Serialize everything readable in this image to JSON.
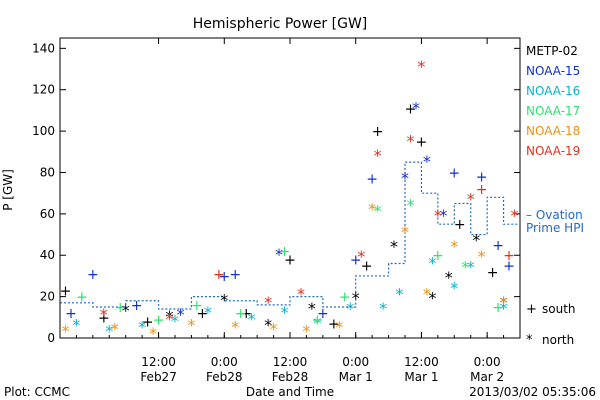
{
  "chart_data": {
    "type": "scatter",
    "title": "Hemispheric Power [GW]",
    "ylabel": "P [GW]",
    "xlabel": "Date and Time",
    "ylim": [
      0,
      145
    ],
    "yticks": [
      "0",
      "20",
      "40",
      "60",
      "80",
      "100",
      "120",
      "140"
    ],
    "xlim": [
      "2013-02-26 18:00",
      "2013-03-02 06:00"
    ],
    "xticks": [
      {
        "time": "2013-02-27 12:00",
        "top": "12:00",
        "bottom": "Feb27"
      },
      {
        "time": "2013-02-28 00:00",
        "top": "0:00",
        "bottom": "Feb28"
      },
      {
        "time": "2013-02-28 12:00",
        "top": "12:00",
        "bottom": "Feb28"
      },
      {
        "time": "2013-03-01 00:00",
        "top": "0:00",
        "bottom": "Mar 1"
      },
      {
        "time": "2013-03-01 12:00",
        "top": "12:00",
        "bottom": "Mar 1"
      },
      {
        "time": "2013-03-02 00:00",
        "top": "0:00",
        "bottom": "Mar 2"
      }
    ],
    "legend_position": "right",
    "series": [
      {
        "name": "METP-02",
        "color": "#000000",
        "points": [
          [
            "2013-02-26 19:00",
            23,
            "s"
          ],
          [
            "2013-02-27 02:00",
            10,
            "s"
          ],
          [
            "2013-02-27 06:00",
            14,
            "n"
          ],
          [
            "2013-02-27 10:00",
            8,
            "s"
          ],
          [
            "2013-02-27 14:00",
            11,
            "n"
          ],
          [
            "2013-02-27 20:00",
            12,
            "s"
          ],
          [
            "2013-02-28 00:00",
            19,
            "n"
          ],
          [
            "2013-02-28 04:00",
            12,
            "s"
          ],
          [
            "2013-02-28 08:00",
            7,
            "n"
          ],
          [
            "2013-02-28 12:00",
            38,
            "s"
          ],
          [
            "2013-02-28 16:00",
            15,
            "n"
          ],
          [
            "2013-02-28 20:00",
            7,
            "s"
          ],
          [
            "2013-03-01 00:00",
            20,
            "n"
          ],
          [
            "2013-03-01 02:00",
            35,
            "s"
          ],
          [
            "2013-03-01 04:00",
            100,
            "s"
          ],
          [
            "2013-03-01 07:00",
            45,
            "n"
          ],
          [
            "2013-03-01 10:00",
            111,
            "s"
          ],
          [
            "2013-03-01 12:00",
            95,
            "s"
          ],
          [
            "2013-03-01 14:00",
            20,
            "n"
          ],
          [
            "2013-03-01 17:00",
            30,
            "n"
          ],
          [
            "2013-03-01 19:00",
            55,
            "s"
          ],
          [
            "2013-03-01 22:00",
            48,
            "n"
          ],
          [
            "2013-03-02 01:00",
            32,
            "s"
          ],
          [
            "2013-03-02 03:00",
            18,
            "n"
          ]
        ]
      },
      {
        "name": "NOAA-15",
        "color": "#1030c8",
        "points": [
          [
            "2013-02-26 20:00",
            12,
            "s"
          ],
          [
            "2013-02-27 00:00",
            31,
            "s"
          ],
          [
            "2013-02-27 08:00",
            16,
            "s"
          ],
          [
            "2013-02-27 16:00",
            12,
            "n"
          ],
          [
            "2013-02-28 00:00",
            30,
            "s"
          ],
          [
            "2013-02-28 02:00",
            31,
            "s"
          ],
          [
            "2013-02-28 10:00",
            41,
            "n"
          ],
          [
            "2013-02-28 18:00",
            12,
            "s"
          ],
          [
            "2013-03-01 00:00",
            38,
            "s"
          ],
          [
            "2013-03-01 03:00",
            77,
            "s"
          ],
          [
            "2013-03-01 09:00",
            78,
            "n"
          ],
          [
            "2013-03-01 11:00",
            112,
            "n"
          ],
          [
            "2013-03-01 13:00",
            86,
            "n"
          ],
          [
            "2013-03-01 16:00",
            60,
            "n"
          ],
          [
            "2013-03-01 18:00",
            80,
            "s"
          ],
          [
            "2013-03-01 23:00",
            78,
            "s"
          ],
          [
            "2013-03-02 02:00",
            45,
            "s"
          ],
          [
            "2013-03-02 04:00",
            35,
            "s"
          ]
        ]
      },
      {
        "name": "NOAA-16",
        "color": "#00b4d2",
        "points": [
          [
            "2013-02-26 21:00",
            7,
            "n"
          ],
          [
            "2013-02-27 03:00",
            4,
            "n"
          ],
          [
            "2013-02-27 09:00",
            6,
            "n"
          ],
          [
            "2013-02-27 15:00",
            9,
            "n"
          ],
          [
            "2013-02-27 21:00",
            13,
            "n"
          ],
          [
            "2013-02-28 05:00",
            10,
            "n"
          ],
          [
            "2013-02-28 11:00",
            13,
            "n"
          ],
          [
            "2013-02-28 17:00",
            8,
            "n"
          ],
          [
            "2013-02-28 23:00",
            15,
            "n"
          ],
          [
            "2013-03-01 05:00",
            15,
            "n"
          ],
          [
            "2013-03-01 08:00",
            22,
            "n"
          ],
          [
            "2013-03-01 14:00",
            37,
            "n"
          ],
          [
            "2013-03-01 18:00",
            25,
            "n"
          ],
          [
            "2013-03-01 21:00",
            35,
            "n"
          ],
          [
            "2013-03-02 03:00",
            15,
            "n"
          ]
        ]
      },
      {
        "name": "NOAA-17",
        "color": "#30e070",
        "points": [
          [
            "2013-02-26 22:00",
            20,
            "s"
          ],
          [
            "2013-02-27 05:00",
            15,
            "s"
          ],
          [
            "2013-02-27 12:00",
            9,
            "s"
          ],
          [
            "2013-02-27 19:00",
            16,
            "s"
          ],
          [
            "2013-02-28 03:00",
            12,
            "s"
          ],
          [
            "2013-02-28 11:00",
            42,
            "s"
          ],
          [
            "2013-02-28 17:00",
            9,
            "s"
          ],
          [
            "2013-02-28 22:00",
            20,
            "s"
          ],
          [
            "2013-03-01 04:00",
            62,
            "n"
          ],
          [
            "2013-03-01 10:00",
            65,
            "n"
          ],
          [
            "2013-03-01 15:00",
            40,
            "s"
          ],
          [
            "2013-03-01 20:00",
            35,
            "n"
          ],
          [
            "2013-03-02 02:00",
            15,
            "s"
          ]
        ]
      },
      {
        "name": "NOAA-18",
        "color": "#f09010",
        "points": [
          [
            "2013-02-26 19:00",
            4,
            "n"
          ],
          [
            "2013-02-27 04:00",
            5,
            "n"
          ],
          [
            "2013-02-27 11:00",
            3,
            "n"
          ],
          [
            "2013-02-27 18:00",
            7,
            "n"
          ],
          [
            "2013-02-28 02:00",
            6,
            "n"
          ],
          [
            "2013-02-28 09:00",
            5,
            "n"
          ],
          [
            "2013-02-28 15:00",
            4,
            "n"
          ],
          [
            "2013-02-28 21:00",
            6,
            "n"
          ],
          [
            "2013-03-01 03:00",
            63,
            "n"
          ],
          [
            "2013-03-01 09:00",
            52,
            "n"
          ],
          [
            "2013-03-01 13:00",
            22,
            "n"
          ],
          [
            "2013-03-01 18:00",
            45,
            "n"
          ],
          [
            "2013-03-01 23:00",
            40,
            "n"
          ],
          [
            "2013-03-02 03:00",
            18,
            "n"
          ]
        ]
      },
      {
        "name": "NOAA-19",
        "color": "#e03020",
        "points": [
          [
            "2013-02-27 02:00",
            12,
            "n"
          ],
          [
            "2013-02-27 14:00",
            10,
            "n"
          ],
          [
            "2013-02-27 23:00",
            31,
            "s"
          ],
          [
            "2013-02-28 08:00",
            18,
            "n"
          ],
          [
            "2013-02-28 14:00",
            22,
            "n"
          ],
          [
            "2013-03-01 01:00",
            40,
            "n"
          ],
          [
            "2013-03-01 04:00",
            89,
            "n"
          ],
          [
            "2013-03-01 10:00",
            96,
            "n"
          ],
          [
            "2013-03-01 12:00",
            132,
            "n"
          ],
          [
            "2013-03-01 15:00",
            60,
            "n"
          ],
          [
            "2013-03-01 21:00",
            68,
            "n"
          ],
          [
            "2013-03-01 23:00",
            72,
            "s"
          ],
          [
            "2013-03-02 04:00",
            40,
            "s"
          ],
          [
            "2013-03-02 05:00",
            60,
            "n"
          ]
        ]
      }
    ],
    "ovation": {
      "label_line1": "Ovation",
      "label_line2": "Prime HPI",
      "dash_prefix": "– ",
      "color": "#1f6bc8",
      "values": [
        [
          "2013-02-26 18:00",
          17
        ],
        [
          "2013-02-27 00:00",
          15
        ],
        [
          "2013-02-27 06:00",
          18
        ],
        [
          "2013-02-27 12:00",
          14
        ],
        [
          "2013-02-27 18:00",
          20
        ],
        [
          "2013-02-28 00:00",
          18
        ],
        [
          "2013-02-28 06:00",
          16
        ],
        [
          "2013-02-28 12:00",
          20
        ],
        [
          "2013-02-28 18:00",
          15
        ],
        [
          "2013-03-01 00:00",
          30
        ],
        [
          "2013-03-01 06:00",
          36
        ],
        [
          "2013-03-01 09:00",
          85
        ],
        [
          "2013-03-01 12:00",
          70
        ],
        [
          "2013-03-01 15:00",
          55
        ],
        [
          "2013-03-01 18:00",
          65
        ],
        [
          "2013-03-01 21:00",
          50
        ],
        [
          "2013-03-02 00:00",
          68
        ],
        [
          "2013-03-02 03:00",
          55
        ]
      ]
    },
    "symbol_key": {
      "south_label": "south",
      "north_label": "north",
      "south_symbol": "+",
      "north_symbol": "*"
    }
  },
  "footer": {
    "plot_credit": "Plot: CCMC",
    "timestamp": "2013/03/02 05:35:06"
  }
}
